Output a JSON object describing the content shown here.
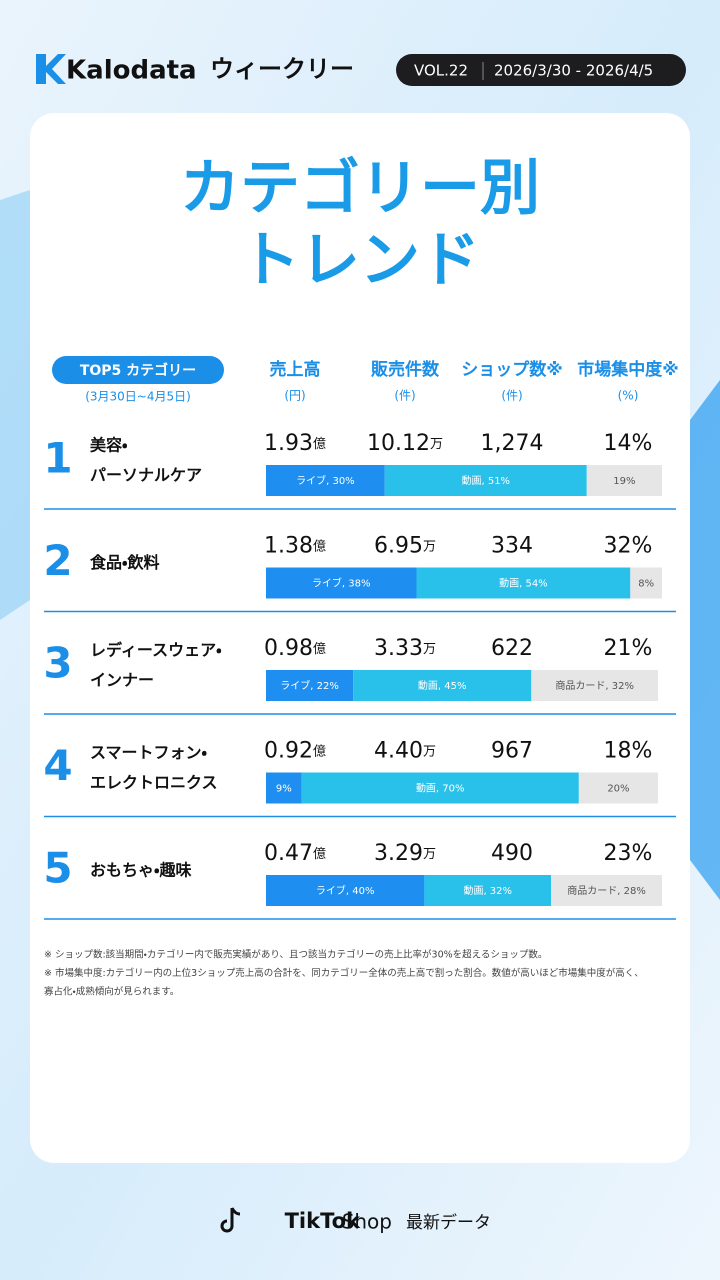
{
  "header": {
    "brand": "Kalodata",
    "subtitle": "ウィークリー",
    "vol": "VOL.22",
    "date": "2026/3/30 - 2026/4/5"
  },
  "title_lines": [
    "カテゴリー別",
    "トレンド"
  ],
  "columns": {
    "category": "TOP5 カテゴリー",
    "period": "(3月30日~4月5日)",
    "headers": [
      {
        "label": "売上高",
        "unit": "(円)"
      },
      {
        "label": "販売件数",
        "unit": "(件)"
      },
      {
        "label": "ショップ数※",
        "unit": "(件)"
      },
      {
        "label": "市場集中度※",
        "unit": "(%)"
      }
    ]
  },
  "rows": [
    {
      "rank": "1",
      "name": [
        "美容・",
        "パーソナルケア"
      ],
      "sales": "1.93",
      "sales_unit": "億",
      "orders": "10.12",
      "orders_unit": "万",
      "shops": "1,274",
      "concentration": "14%",
      "segments": [
        {
          "label": "ライブ, 30%",
          "value": 30,
          "color": "#1e8ff0"
        },
        {
          "label": "動画, 51%",
          "value": 51,
          "color": "#29c1ea"
        },
        {
          "label": "19%",
          "value": 19,
          "color": "#e6e6e6"
        }
      ]
    },
    {
      "rank": "2",
      "name": [
        "食品・飲料"
      ],
      "sales": "1.38",
      "sales_unit": "億",
      "orders": "6.95",
      "orders_unit": "万",
      "shops": "334",
      "concentration": "32%",
      "segments": [
        {
          "label": "ライブ, 38%",
          "value": 38,
          "color": "#1e8ff0"
        },
        {
          "label": "動画, 54%",
          "value": 54,
          "color": "#29c1ea"
        },
        {
          "label": "8%",
          "value": 8,
          "color": "#e6e6e6"
        }
      ]
    },
    {
      "rank": "3",
      "name": [
        "レディースウェア・",
        "インナー"
      ],
      "sales": "0.98",
      "sales_unit": "億",
      "orders": "3.33",
      "orders_unit": "万",
      "shops": "622",
      "concentration": "21%",
      "segments": [
        {
          "label": "ライブ, 22%",
          "value": 22,
          "color": "#1e8ff0"
        },
        {
          "label": "動画, 45%",
          "value": 45,
          "color": "#29c1ea"
        },
        {
          "label": "商品カード, 32%",
          "value": 32,
          "color": "#e6e6e6"
        }
      ]
    },
    {
      "rank": "4",
      "name": [
        "スマートフォン・",
        "エレクトロニクス"
      ],
      "sales": "0.92",
      "sales_unit": "億",
      "orders": "4.40",
      "orders_unit": "万",
      "shops": "967",
      "concentration": "18%",
      "segments": [
        {
          "label": "9%",
          "value": 9,
          "color": "#1e8ff0"
        },
        {
          "label": "動画, 70%",
          "value": 70,
          "color": "#29c1ea"
        },
        {
          "label": "20%",
          "value": 20,
          "color": "#e6e6e6"
        }
      ]
    },
    {
      "rank": "5",
      "name": [
        "おもちゃ・趣味"
      ],
      "sales": "0.47",
      "sales_unit": "億",
      "orders": "3.29",
      "orders_unit": "万",
      "shops": "490",
      "concentration": "23%",
      "segments": [
        {
          "label": "ライブ, 40%",
          "value": 40,
          "color": "#1e8ff0"
        },
        {
          "label": "動画, 32%",
          "value": 32,
          "color": "#29c1ea"
        },
        {
          "label": "商品カード, 28%",
          "value": 28,
          "color": "#e6e6e6"
        }
      ]
    }
  ],
  "notes": [
    "※ ショップ数:該当期間・カテゴリー内で販売実績があり、且つ該当カテゴリーの売上比率が30%を超えるショップ数。",
    "※ 市場集中度:カテゴリー内の上位3ショップ売上高の合計を、同カテゴリー全体の売上高で割った割合。数値が高いほど市場集中度が高く、",
    "寡占化・成熟傾向が見られます。"
  ],
  "footer": {
    "brand": "TikTok",
    "shop": "Shop",
    "tagline": "最新データ"
  }
}
